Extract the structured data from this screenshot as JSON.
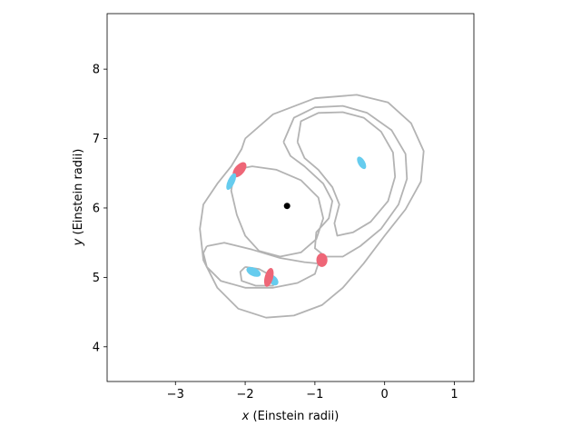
{
  "chart_data": {
    "type": "scatter",
    "title": "",
    "xlabel_var": "x",
    "xlabel_text": " (Einstein radii)",
    "ylabel_var": "y",
    "ylabel_text": " (Einstein radii)",
    "xlim": [
      -3.98,
      1.28
    ],
    "ylim": [
      3.5,
      8.8
    ],
    "xticks": [
      -3,
      -2,
      -1,
      0,
      1
    ],
    "yticks": [
      4,
      5,
      6,
      7,
      8
    ],
    "xtick_labels": [
      "−3",
      "−2",
      "−1",
      "0",
      "1"
    ],
    "ytick_labels": [
      "4",
      "5",
      "6",
      "7",
      "8"
    ],
    "grid": false,
    "colors": {
      "caustic": "#b3b3b3",
      "image_red": "#ee6677",
      "image_blue": "#66ccee",
      "lens": "#000000"
    },
    "lens": {
      "x": -1.4,
      "y": 6.03
    },
    "caustic_curves": [
      {
        "name": "outer",
        "points": [
          [
            -2.0,
            7.0
          ],
          [
            -1.6,
            7.35
          ],
          [
            -1.0,
            7.58
          ],
          [
            -0.4,
            7.63
          ],
          [
            0.05,
            7.52
          ],
          [
            0.38,
            7.22
          ],
          [
            0.56,
            6.82
          ],
          [
            0.52,
            6.38
          ],
          [
            0.3,
            5.98
          ],
          [
            0.0,
            5.6
          ],
          [
            -0.3,
            5.2
          ],
          [
            -0.6,
            4.85
          ],
          [
            -0.9,
            4.6
          ],
          [
            -1.3,
            4.45
          ],
          [
            -1.7,
            4.42
          ],
          [
            -2.1,
            4.55
          ],
          [
            -2.4,
            4.85
          ],
          [
            -2.6,
            5.25
          ],
          [
            -2.65,
            5.7
          ],
          [
            -2.6,
            6.05
          ],
          [
            -2.4,
            6.35
          ],
          [
            -2.2,
            6.6
          ],
          [
            -2.05,
            6.85
          ],
          [
            -2.0,
            7.0
          ]
        ]
      },
      {
        "name": "right-outer",
        "points": [
          [
            -1.45,
            6.95
          ],
          [
            -1.3,
            7.3
          ],
          [
            -1.0,
            7.45
          ],
          [
            -0.6,
            7.47
          ],
          [
            -0.25,
            7.37
          ],
          [
            0.1,
            7.12
          ],
          [
            0.3,
            6.78
          ],
          [
            0.32,
            6.42
          ],
          [
            0.2,
            6.05
          ],
          [
            -0.05,
            5.7
          ],
          [
            -0.35,
            5.45
          ],
          [
            -0.6,
            5.3
          ],
          [
            -0.85,
            5.3
          ],
          [
            -1.0,
            5.42
          ],
          [
            -0.98,
            5.65
          ],
          [
            -0.8,
            5.85
          ],
          [
            -0.75,
            6.1
          ],
          [
            -0.88,
            6.35
          ],
          [
            -1.15,
            6.6
          ],
          [
            -1.35,
            6.75
          ],
          [
            -1.45,
            6.95
          ]
        ]
      },
      {
        "name": "right-inner",
        "points": [
          [
            -1.25,
            6.95
          ],
          [
            -1.2,
            7.25
          ],
          [
            -0.95,
            7.37
          ],
          [
            -0.6,
            7.38
          ],
          [
            -0.3,
            7.3
          ],
          [
            -0.05,
            7.1
          ],
          [
            0.12,
            6.8
          ],
          [
            0.15,
            6.45
          ],
          [
            0.05,
            6.1
          ],
          [
            -0.2,
            5.8
          ],
          [
            -0.45,
            5.65
          ],
          [
            -0.68,
            5.6
          ],
          [
            -0.72,
            5.78
          ],
          [
            -0.65,
            6.05
          ],
          [
            -0.75,
            6.3
          ],
          [
            -0.95,
            6.55
          ],
          [
            -1.15,
            6.72
          ],
          [
            -1.25,
            6.95
          ]
        ]
      },
      {
        "name": "left-loop",
        "points": [
          [
            -2.15,
            6.55
          ],
          [
            -1.9,
            6.6
          ],
          [
            -1.55,
            6.55
          ],
          [
            -1.2,
            6.4
          ],
          [
            -0.95,
            6.15
          ],
          [
            -0.88,
            5.85
          ],
          [
            -0.98,
            5.55
          ],
          [
            -1.2,
            5.36
          ],
          [
            -1.5,
            5.3
          ],
          [
            -1.8,
            5.38
          ],
          [
            -2.0,
            5.6
          ],
          [
            -2.12,
            5.9
          ],
          [
            -2.2,
            6.25
          ],
          [
            -2.15,
            6.55
          ]
        ]
      },
      {
        "name": "lower-small",
        "points": [
          [
            -2.55,
            5.45
          ],
          [
            -2.3,
            5.5
          ],
          [
            -1.9,
            5.4
          ],
          [
            -1.5,
            5.28
          ],
          [
            -1.15,
            5.22
          ],
          [
            -0.95,
            5.2
          ],
          [
            -1.0,
            5.05
          ],
          [
            -1.25,
            4.92
          ],
          [
            -1.6,
            4.85
          ],
          [
            -2.0,
            4.85
          ],
          [
            -2.35,
            4.95
          ],
          [
            -2.55,
            5.15
          ],
          [
            -2.6,
            5.35
          ],
          [
            -2.55,
            5.45
          ]
        ]
      },
      {
        "name": "tiny-loop",
        "points": [
          [
            -2.0,
            5.15
          ],
          [
            -1.8,
            5.12
          ],
          [
            -1.58,
            5.0
          ],
          [
            -1.6,
            4.88
          ],
          [
            -1.85,
            4.88
          ],
          [
            -2.05,
            4.95
          ],
          [
            -2.07,
            5.08
          ],
          [
            -2.0,
            5.15
          ]
        ]
      }
    ],
    "images": [
      {
        "x": -2.08,
        "y": 6.55,
        "rx": 0.07,
        "ry": 0.13,
        "angle": 40,
        "color": "red"
      },
      {
        "x": -2.2,
        "y": 6.38,
        "rx": 0.05,
        "ry": 0.13,
        "angle": 25,
        "color": "blue"
      },
      {
        "x": -0.9,
        "y": 5.25,
        "rx": 0.08,
        "ry": 0.1,
        "angle": 0,
        "color": "red"
      },
      {
        "x": -0.33,
        "y": 6.65,
        "rx": 0.05,
        "ry": 0.1,
        "angle": -30,
        "color": "blue"
      },
      {
        "x": -1.88,
        "y": 5.08,
        "rx": 0.06,
        "ry": 0.11,
        "angle": -65,
        "color": "blue"
      },
      {
        "x": -1.6,
        "y": 4.96,
        "rx": 0.06,
        "ry": 0.09,
        "angle": -45,
        "color": "blue"
      },
      {
        "x": -1.66,
        "y": 5.0,
        "rx": 0.06,
        "ry": 0.14,
        "angle": 15,
        "color": "red"
      }
    ]
  }
}
